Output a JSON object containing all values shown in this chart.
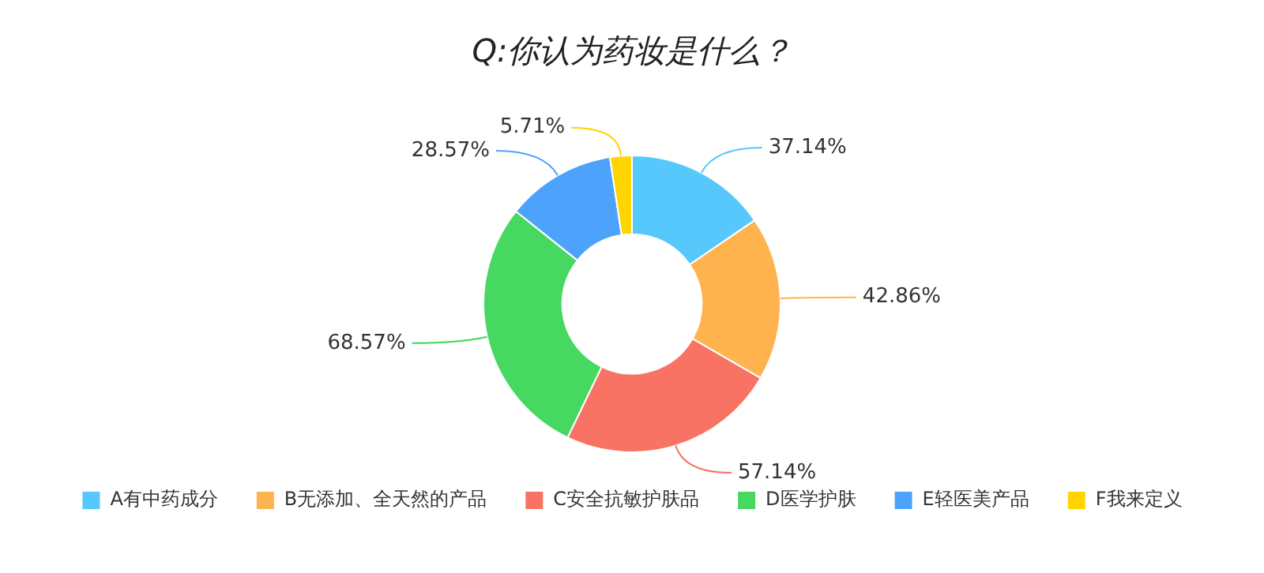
{
  "chart_data": {
    "type": "donut",
    "title": "Q:你认为药妆是什么？",
    "categories": [
      "A有中药成分",
      "B无添加、全天然的产品",
      "C安全抗敏护肤品",
      "D医学护肤",
      "E轻医美产品",
      "F我来定义"
    ],
    "values": [
      37.14,
      42.86,
      57.14,
      68.57,
      28.57,
      5.71
    ],
    "colors": [
      "#56c8fb",
      "#ffb34f",
      "#f87363",
      "#47d862",
      "#4da3fb",
      "#ffd400"
    ],
    "value_labels": [
      "37.14%",
      "42.86%",
      "57.14%",
      "68.57%",
      "28.57%",
      "5.71%"
    ],
    "legend": "bottom"
  }
}
